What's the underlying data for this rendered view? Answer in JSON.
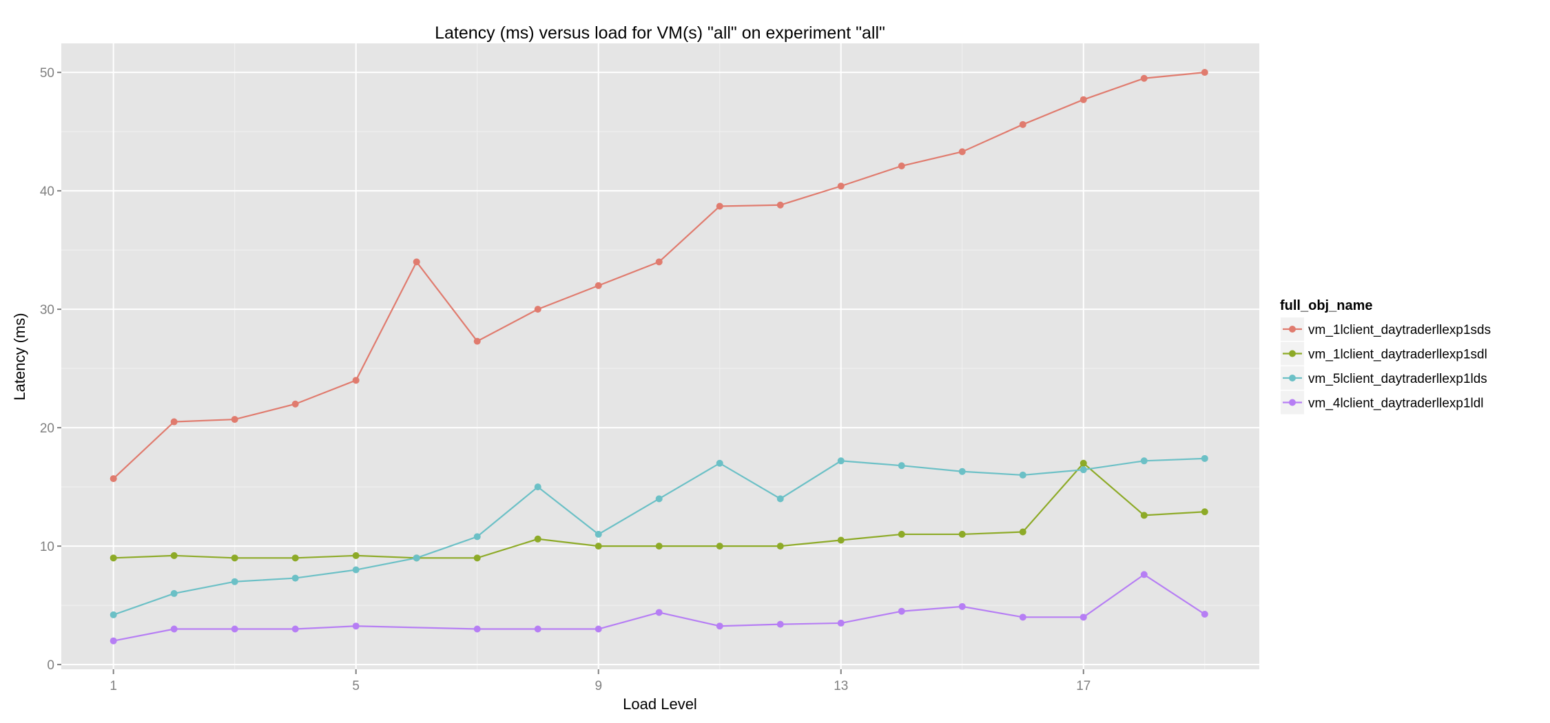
{
  "chart_data": {
    "type": "line",
    "title": "Latency (ms) versus load for VM(s) \"all\" on experiment \"all\"",
    "xlabel": "Load Level",
    "ylabel": "Latency (ms)",
    "x": [
      1,
      2,
      3,
      4,
      5,
      6,
      7,
      8,
      9,
      10,
      11,
      12,
      13,
      14,
      15,
      16,
      17,
      18,
      19
    ],
    "xticks": [
      1,
      5,
      9,
      13,
      17
    ],
    "yticks": [
      0,
      10,
      20,
      30,
      40,
      50
    ],
    "xlim": [
      0.14,
      19.9
    ],
    "ylim": [
      -0.4,
      52.45
    ],
    "grid": true,
    "legend": {
      "title": "full_obj_name",
      "placement": "right"
    },
    "series": [
      {
        "name": "vm_1lclient_daytraderllexp1sds",
        "color": "#E07B6E",
        "values": [
          15.7,
          20.5,
          20.7,
          22,
          24,
          34,
          27.3,
          30,
          32,
          34,
          38.7,
          38.8,
          40.4,
          42.1,
          43.3,
          45.6,
          47.7,
          49.5,
          50
        ]
      },
      {
        "name": "vm_1lclient_daytraderllexp1sdl",
        "color": "#8DAA27",
        "values": [
          9,
          9.2,
          9,
          9,
          9.2,
          9,
          9,
          10.6,
          10,
          10,
          10,
          10,
          10.5,
          11,
          11,
          11.2,
          17,
          12.6,
          12.9
        ]
      },
      {
        "name": "vm_5lclient_daytraderllexp1lds",
        "color": "#6BC0C6",
        "values": [
          4.2,
          6,
          7,
          7.3,
          8,
          9,
          10.8,
          15,
          11,
          14,
          17,
          14,
          17.2,
          16.8,
          16.3,
          16,
          16.45,
          17.2,
          17.4
        ]
      },
      {
        "name": "vm_4lclient_daytraderllexp1ldl",
        "color": "#B67EF4",
        "values": [
          2,
          3,
          3,
          3,
          3.25,
          null,
          3,
          3,
          3,
          4.4,
          3.25,
          3.4,
          3.5,
          4.5,
          4.9,
          4,
          4,
          7.6,
          4.25
        ]
      }
    ]
  }
}
